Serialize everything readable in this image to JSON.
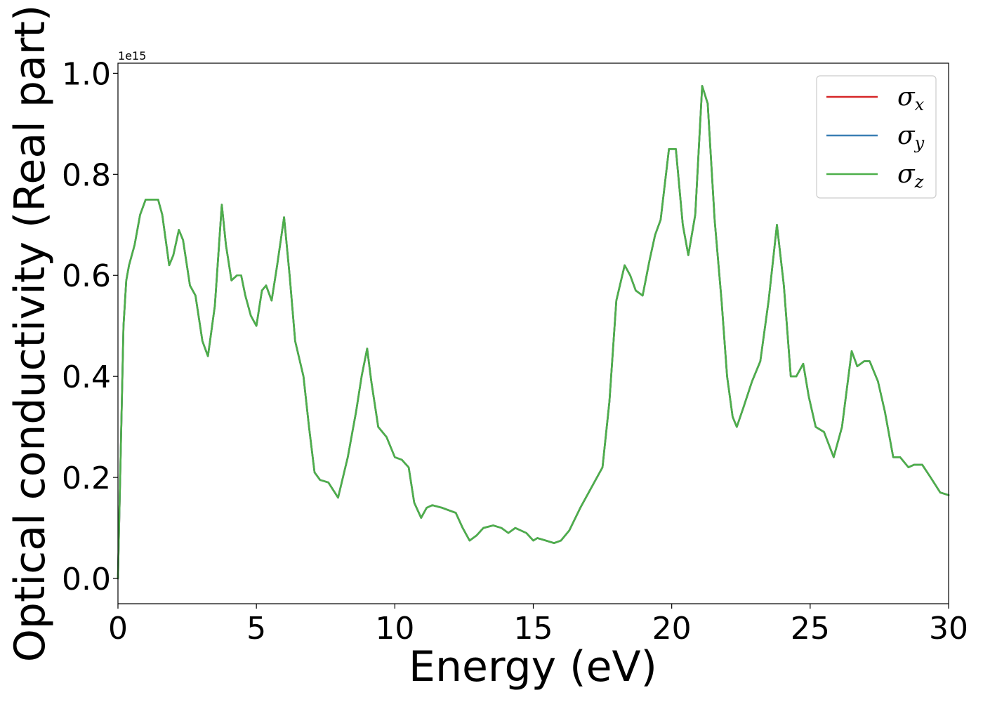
{
  "chart_data": {
    "type": "line",
    "xlabel": "Energy (eV)",
    "ylabel": "Optical conductivity (Real part)",
    "y_offset_label": "1e15",
    "xlim": [
      0,
      30
    ],
    "ylim": [
      -0.05,
      1.02
    ],
    "x_ticks": [
      0,
      5,
      10,
      15,
      20,
      25,
      30
    ],
    "x_tick_labels": [
      "0",
      "5",
      "10",
      "15",
      "20",
      "25",
      "30"
    ],
    "y_ticks": [
      0.0,
      0.2,
      0.4,
      0.6,
      0.8,
      1.0
    ],
    "y_tick_labels": [
      "0.0",
      "0.2",
      "0.4",
      "0.6",
      "0.8",
      "1.0"
    ],
    "grid": false,
    "legend_position": "top-right",
    "legend": [
      {
        "symbol": "σ",
        "subscript": "x",
        "color": "#d62728"
      },
      {
        "symbol": "σ",
        "subscript": "y",
        "color": "#3a7fb4"
      },
      {
        "symbol": "σ",
        "subscript": "z",
        "color": "#4daf4a"
      }
    ],
    "x": [
      0,
      0.1,
      0.2,
      0.3,
      0.4,
      0.6,
      0.8,
      1.0,
      1.2,
      1.45,
      1.6,
      1.85,
      2.0,
      2.2,
      2.35,
      2.6,
      2.8,
      3.05,
      3.25,
      3.5,
      3.75,
      3.9,
      4.1,
      4.3,
      4.45,
      4.6,
      4.8,
      5.0,
      5.2,
      5.35,
      5.55,
      5.75,
      6.0,
      6.2,
      6.4,
      6.7,
      6.9,
      7.1,
      7.3,
      7.6,
      7.95,
      8.3,
      8.6,
      8.8,
      9.0,
      9.15,
      9.4,
      9.7,
      10.0,
      10.25,
      10.5,
      10.7,
      10.95,
      11.15,
      11.35,
      11.7,
      12.2,
      12.45,
      12.7,
      12.95,
      13.2,
      13.55,
      13.85,
      14.1,
      14.35,
      14.75,
      15.0,
      15.15,
      15.45,
      15.75,
      16.0,
      16.3,
      16.7,
      17.1,
      17.5,
      17.75,
      18.0,
      18.3,
      18.5,
      18.7,
      18.95,
      19.2,
      19.4,
      19.6,
      19.9,
      20.15,
      20.4,
      20.6,
      20.85,
      21.1,
      21.3,
      21.55,
      21.8,
      22.0,
      22.2,
      22.35,
      22.6,
      22.9,
      23.2,
      23.5,
      23.8,
      24.05,
      24.3,
      24.5,
      24.75,
      24.95,
      25.2,
      25.5,
      25.85,
      26.15,
      26.5,
      26.7,
      26.95,
      27.15,
      27.45,
      27.7,
      28.0,
      28.25,
      28.55,
      28.75,
      29.05,
      29.35,
      29.7,
      30.0
    ],
    "series": [
      {
        "name": "σx",
        "color": "#d62728",
        "values": [
          0.0,
          0.25,
          0.5,
          0.59,
          0.62,
          0.66,
          0.72,
          0.75,
          0.75,
          0.75,
          0.72,
          0.62,
          0.64,
          0.69,
          0.67,
          0.58,
          0.56,
          0.47,
          0.44,
          0.54,
          0.74,
          0.66,
          0.59,
          0.6,
          0.6,
          0.56,
          0.52,
          0.5,
          0.57,
          0.58,
          0.55,
          0.62,
          0.715,
          0.6,
          0.47,
          0.4,
          0.3,
          0.21,
          0.195,
          0.19,
          0.16,
          0.24,
          0.33,
          0.4,
          0.455,
          0.39,
          0.3,
          0.28,
          0.24,
          0.235,
          0.22,
          0.15,
          0.12,
          0.14,
          0.145,
          0.14,
          0.13,
          0.1,
          0.075,
          0.085,
          0.1,
          0.105,
          0.1,
          0.09,
          0.1,
          0.09,
          0.075,
          0.08,
          0.075,
          0.07,
          0.075,
          0.095,
          0.14,
          0.18,
          0.22,
          0.35,
          0.55,
          0.62,
          0.6,
          0.57,
          0.56,
          0.63,
          0.68,
          0.71,
          0.85,
          0.85,
          0.7,
          0.64,
          0.72,
          0.975,
          0.94,
          0.71,
          0.55,
          0.4,
          0.32,
          0.3,
          0.34,
          0.39,
          0.43,
          0.55,
          0.7,
          0.58,
          0.4,
          0.4,
          0.425,
          0.36,
          0.3,
          0.29,
          0.24,
          0.3,
          0.45,
          0.42,
          0.43,
          0.43,
          0.39,
          0.33,
          0.24,
          0.24,
          0.22,
          0.225,
          0.225,
          0.2,
          0.17,
          0.165
        ]
      },
      {
        "name": "σy",
        "color": "#3a7fb4",
        "values": [
          0.0,
          0.25,
          0.5,
          0.59,
          0.62,
          0.66,
          0.72,
          0.75,
          0.75,
          0.75,
          0.72,
          0.62,
          0.64,
          0.69,
          0.67,
          0.58,
          0.56,
          0.47,
          0.44,
          0.54,
          0.74,
          0.66,
          0.59,
          0.6,
          0.6,
          0.56,
          0.52,
          0.5,
          0.57,
          0.58,
          0.55,
          0.62,
          0.715,
          0.6,
          0.47,
          0.4,
          0.3,
          0.21,
          0.195,
          0.19,
          0.16,
          0.24,
          0.33,
          0.4,
          0.455,
          0.39,
          0.3,
          0.28,
          0.24,
          0.235,
          0.22,
          0.15,
          0.12,
          0.14,
          0.145,
          0.14,
          0.13,
          0.1,
          0.075,
          0.085,
          0.1,
          0.105,
          0.1,
          0.09,
          0.1,
          0.09,
          0.075,
          0.08,
          0.075,
          0.07,
          0.075,
          0.095,
          0.14,
          0.18,
          0.22,
          0.35,
          0.55,
          0.62,
          0.6,
          0.57,
          0.56,
          0.63,
          0.68,
          0.71,
          0.85,
          0.85,
          0.7,
          0.64,
          0.72,
          0.975,
          0.94,
          0.71,
          0.55,
          0.4,
          0.32,
          0.3,
          0.34,
          0.39,
          0.43,
          0.55,
          0.7,
          0.58,
          0.4,
          0.4,
          0.425,
          0.36,
          0.3,
          0.29,
          0.24,
          0.3,
          0.45,
          0.42,
          0.43,
          0.43,
          0.39,
          0.33,
          0.24,
          0.24,
          0.22,
          0.225,
          0.225,
          0.2,
          0.17,
          0.165
        ]
      },
      {
        "name": "σz",
        "color": "#4daf4a",
        "values": [
          0.0,
          0.25,
          0.5,
          0.59,
          0.62,
          0.66,
          0.72,
          0.75,
          0.75,
          0.75,
          0.72,
          0.62,
          0.64,
          0.69,
          0.67,
          0.58,
          0.56,
          0.47,
          0.44,
          0.54,
          0.74,
          0.66,
          0.59,
          0.6,
          0.6,
          0.56,
          0.52,
          0.5,
          0.57,
          0.58,
          0.55,
          0.62,
          0.715,
          0.6,
          0.47,
          0.4,
          0.3,
          0.21,
          0.195,
          0.19,
          0.16,
          0.24,
          0.33,
          0.4,
          0.455,
          0.39,
          0.3,
          0.28,
          0.24,
          0.235,
          0.22,
          0.15,
          0.12,
          0.14,
          0.145,
          0.14,
          0.13,
          0.1,
          0.075,
          0.085,
          0.1,
          0.105,
          0.1,
          0.09,
          0.1,
          0.09,
          0.075,
          0.08,
          0.075,
          0.07,
          0.075,
          0.095,
          0.14,
          0.18,
          0.22,
          0.35,
          0.55,
          0.62,
          0.6,
          0.57,
          0.56,
          0.63,
          0.68,
          0.71,
          0.85,
          0.85,
          0.7,
          0.64,
          0.72,
          0.975,
          0.94,
          0.71,
          0.55,
          0.4,
          0.32,
          0.3,
          0.34,
          0.39,
          0.43,
          0.55,
          0.7,
          0.58,
          0.4,
          0.4,
          0.425,
          0.36,
          0.3,
          0.29,
          0.24,
          0.3,
          0.45,
          0.42,
          0.43,
          0.43,
          0.39,
          0.33,
          0.24,
          0.24,
          0.22,
          0.225,
          0.225,
          0.2,
          0.17,
          0.165
        ]
      }
    ]
  }
}
